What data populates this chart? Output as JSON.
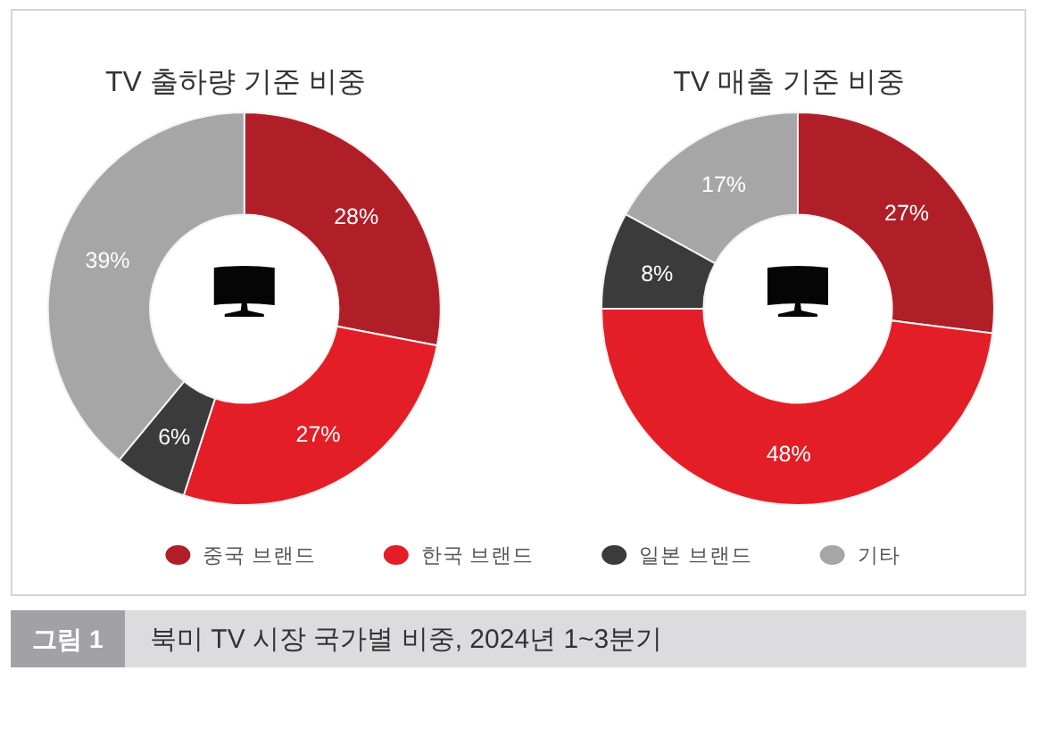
{
  "chart_data": {
    "type": "donut",
    "title": "북미 TV 시장 국가별 비중, 2024년 1~3분기",
    "annotations": [
      "그림 1"
    ],
    "categories": [
      "중국 브랜드",
      "한국 브랜드",
      "일본 브랜드",
      "기타"
    ],
    "colors": [
      "#b01f28",
      "#e41e26",
      "#3b3b3b",
      "#a6a6a6"
    ],
    "series": [
      {
        "name": "TV 출하량 기준 비중",
        "values": [
          28,
          27,
          6,
          39
        ],
        "value_labels": [
          "28%",
          "27%",
          "6%",
          "39%"
        ]
      },
      {
        "name": "TV 매출 기준 비중",
        "values": [
          27,
          48,
          8,
          17
        ],
        "value_labels": [
          "27%",
          "48%",
          "8%",
          "17%"
        ]
      }
    ],
    "legend": "bottom"
  }
}
